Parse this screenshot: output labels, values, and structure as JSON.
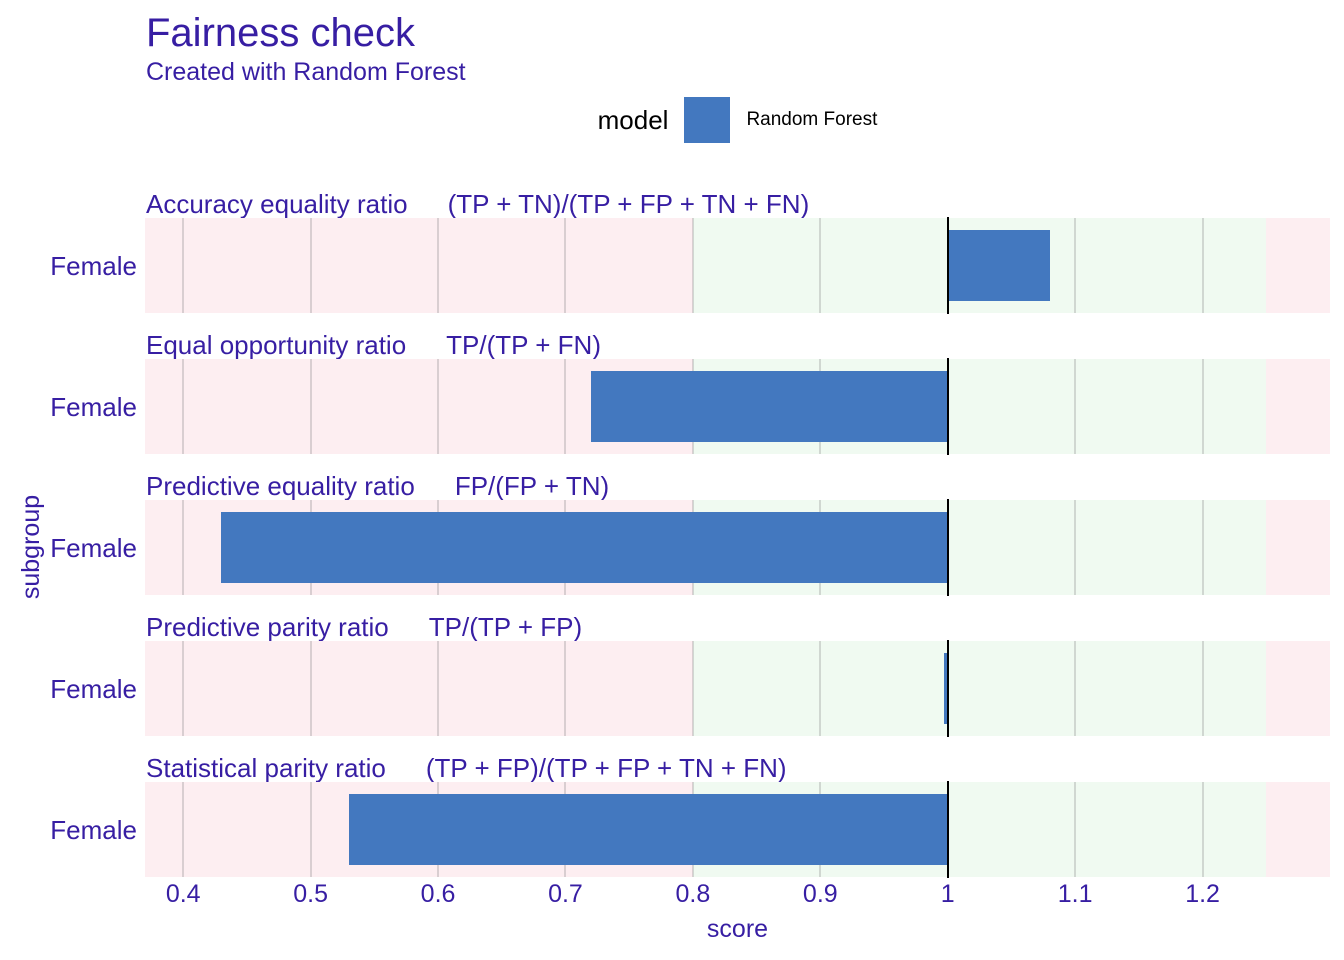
{
  "header": {
    "title": "Fairness check",
    "subtitle": "Created with Random Forest"
  },
  "legend": {
    "title": "model",
    "items": [
      {
        "label": "Random Forest",
        "color": "#4378bf"
      }
    ]
  },
  "axes": {
    "x_label": "score",
    "y_label": "subgroup",
    "x_tick_labels": [
      "0.4",
      "0.5",
      "0.6",
      "0.7",
      "0.8",
      "0.9",
      "1",
      "1.1",
      "1.2"
    ]
  },
  "colors": {
    "text_primary": "#371ea3",
    "legend_text": "#000000",
    "bar": "#4378bf",
    "zone_fail": "#fdeef1",
    "zone_ok": "#f0faf1",
    "reference_line": "#000000",
    "background": "#ffffff"
  },
  "chart_data": {
    "type": "bar",
    "orientation": "horizontal",
    "title": "Fairness check",
    "subtitle": "Created with Random Forest",
    "xlabel": "score",
    "ylabel": "subgroup",
    "model": "Random Forest",
    "x_range": [
      0.37,
      1.3
    ],
    "x_ticks": [
      0.4,
      0.5,
      0.6,
      0.7,
      0.8,
      0.9,
      1,
      1.1,
      1.2
    ],
    "baseline": 1,
    "fairness_ok_range": [
      0.8,
      1.25
    ],
    "grid": true,
    "legend_position": "top",
    "panels": [
      {
        "metric": "Accuracy equality ratio",
        "formula": "(TP + TN)/(TP + FP + TN + FN)",
        "subgroup": "Female",
        "value": 1.08
      },
      {
        "metric": "Equal opportunity ratio",
        "formula": "TP/(TP + FN)",
        "subgroup": "Female",
        "value": 0.72
      },
      {
        "metric": "Predictive equality ratio",
        "formula": "FP/(FP + TN)",
        "subgroup": "Female",
        "value": 0.43
      },
      {
        "metric": "Predictive parity ratio",
        "formula": "TP/(TP + FP)",
        "subgroup": "Female",
        "value": 0.997
      },
      {
        "metric": "Statistical parity ratio",
        "formula": "(TP + FP)/(TP + FP + TN + FN)",
        "subgroup": "Female",
        "value": 0.53
      }
    ]
  }
}
